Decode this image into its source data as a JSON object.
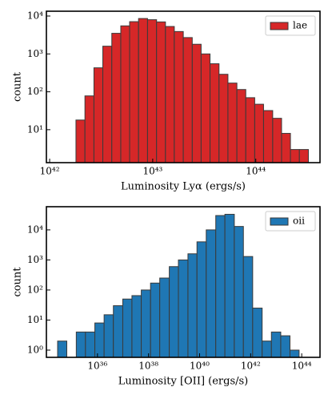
{
  "chart_data": [
    {
      "type": "histogram",
      "xlabel": "Luminosity Lyα (ergs/s)",
      "ylabel": "count",
      "log_x": true,
      "log_y": true,
      "legend": "upper right",
      "edgecolor": "#3a3a3a",
      "bins": [
        1.8e+42,
        2.2e+42,
        2.69e+42,
        3.28e+42,
        4.01e+42,
        4.9e+42,
        5.97e+42,
        7.29e+42,
        8.91e+42,
        1.09e+43,
        1.33e+43,
        1.62e+43,
        1.98e+43,
        2.42e+43,
        2.95e+43,
        3.6e+43,
        4.4e+43,
        5.37e+43,
        6.56e+43,
        8e+43,
        9.77e+43,
        1.19e+44,
        1.46e+44,
        1.78e+44,
        2.17e+44,
        2.65e+44,
        3.24e+44
      ],
      "series": [
        {
          "name": "lae",
          "color": "#d62728",
          "values": [
            18,
            78,
            430,
            1600,
            3500,
            5500,
            7100,
            8600,
            8000,
            7000,
            5300,
            3900,
            2700,
            1800,
            1000,
            550,
            290,
            170,
            115,
            70,
            47,
            32,
            20,
            8,
            3,
            3
          ]
        }
      ],
      "xlim": [
        9.3e+41,
        4.2e+44
      ],
      "ylim": [
        1.35,
        13400
      ],
      "xticks": [
        {
          "value": 1e+42,
          "label": "10⁴²"
        },
        {
          "value": 1e+43,
          "label": "10⁴³"
        },
        {
          "value": 1e+44,
          "label": "10⁴⁴"
        }
      ],
      "yticks": [
        {
          "value": 10,
          "label": "10¹"
        },
        {
          "value": 100,
          "label": "10²"
        },
        {
          "value": 1000,
          "label": "10³"
        },
        {
          "value": 10000,
          "label": "10⁴"
        }
      ]
    },
    {
      "type": "histogram",
      "xlabel": "Luminosity [OII] (ergs/s)",
      "ylabel": "count",
      "log_x": true,
      "log_y": true,
      "legend": "upper right",
      "edgecolor": "#3a3a3a",
      "bins": [
        2.75e+34,
        6.3e+34,
        1.48e+35,
        3.39e+35,
        7.9e+35,
        1.82e+36,
        4.2e+36,
        9.8e+36,
        2.24e+37,
        5.2e+37,
        1.2e+38,
        2.75e+38,
        6.5e+38,
        1.48e+39,
        3.5e+39,
        7.9e+39,
        1.82e+40,
        4.3e+40,
        9.8e+40,
        2.29e+41,
        5.2e+41,
        1.2e+42,
        2.82e+42,
        6.5e+42,
        1.51e+43,
        3.47e+43,
        7.9e+43
      ],
      "series": [
        {
          "name": "oii",
          "color": "#1f77b4",
          "values": [
            2,
            0,
            4,
            4,
            8,
            15,
            30,
            50,
            65,
            100,
            170,
            250,
            600,
            1000,
            1600,
            4000,
            10000,
            30000,
            33000,
            13000,
            1300,
            25,
            2,
            4,
            3,
            1
          ]
        }
      ],
      "xlim": [
        1e+34,
        5.2e+44
      ],
      "ylim": [
        0.575,
        59000
      ],
      "xticks": [
        {
          "value": 1e+36,
          "label": "10³⁶"
        },
        {
          "value": 1e+38,
          "label": "10³⁸"
        },
        {
          "value": 1e+40,
          "label": "10⁴⁰"
        },
        {
          "value": 1e+42,
          "label": "10⁴²"
        },
        {
          "value": 1e+44,
          "label": "10⁴⁴"
        }
      ],
      "yticks": [
        {
          "value": 1,
          "label": "10⁰"
        },
        {
          "value": 10,
          "label": "10¹"
        },
        {
          "value": 100,
          "label": "10²"
        },
        {
          "value": 1000,
          "label": "10³"
        },
        {
          "value": 10000,
          "label": "10⁴"
        }
      ]
    }
  ]
}
